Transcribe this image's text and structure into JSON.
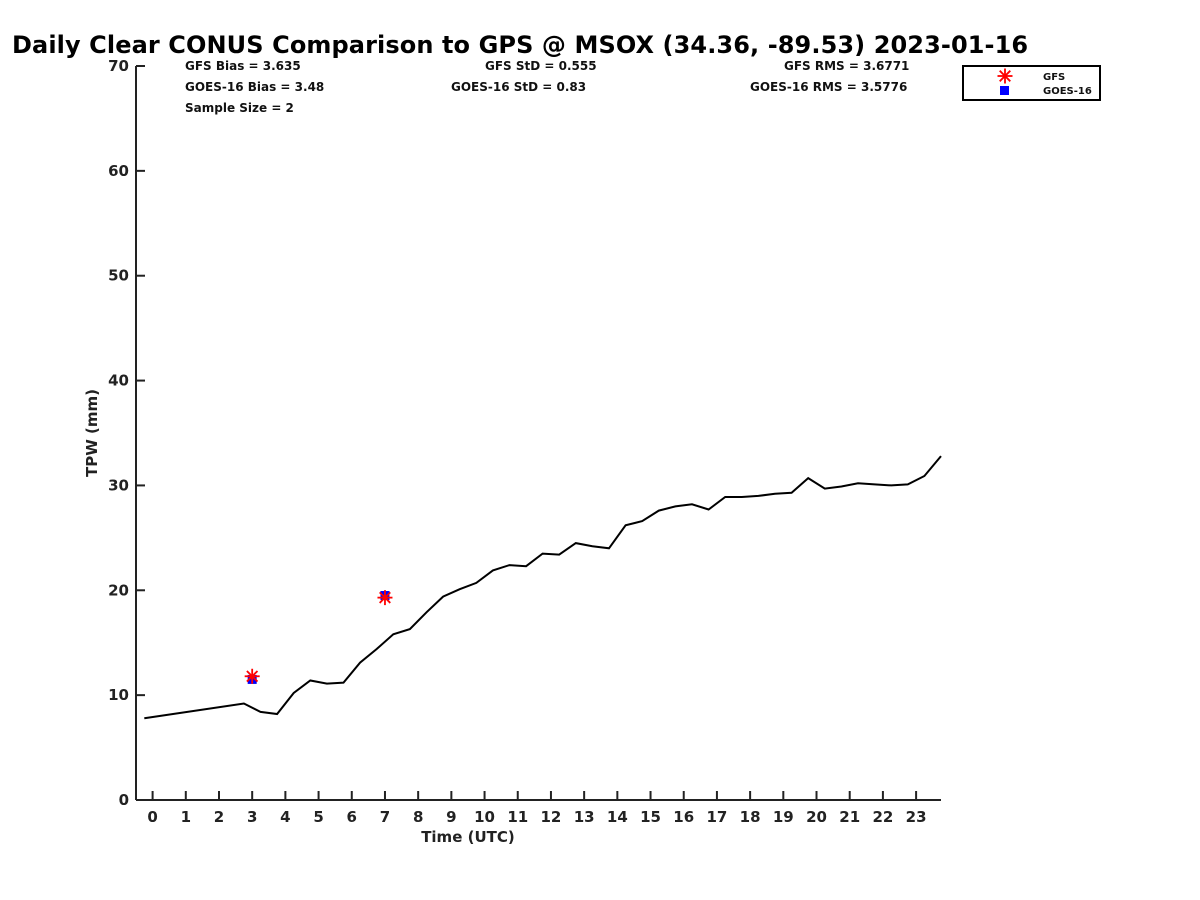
{
  "chart_data": {
    "type": "line",
    "title": "Daily Clear CONUS Comparison to GPS @ MSOX (34.36, -89.53) 2023-01-16",
    "xlabel": "Time (UTC)",
    "ylabel": "TPW (mm)",
    "xlim": [
      -0.5,
      23.75
    ],
    "ylim": [
      0,
      70
    ],
    "xticks": [
      0,
      1,
      2,
      3,
      4,
      5,
      6,
      7,
      8,
      9,
      10,
      11,
      12,
      13,
      14,
      15,
      16,
      17,
      18,
      19,
      20,
      21,
      22,
      23
    ],
    "yticks": [
      0,
      10,
      20,
      30,
      40,
      50,
      60,
      70
    ],
    "gps_line": {
      "x": [
        -0.25,
        2.75,
        3.25,
        3.75,
        4.25,
        4.75,
        5.25,
        5.75,
        6.25,
        6.75,
        7.25,
        7.75,
        8.25,
        8.75,
        9.25,
        9.75,
        10.25,
        10.75,
        11.25,
        11.75,
        12.25,
        12.75,
        13.25,
        13.75,
        14.25,
        14.75,
        15.25,
        15.75,
        16.25,
        16.75,
        17.25,
        17.75,
        18.25,
        18.75,
        19.25,
        19.75,
        20.25,
        20.75,
        21.25,
        21.75,
        22.25,
        22.75,
        23.25,
        23.75
      ],
      "y": [
        7.8,
        9.2,
        8.4,
        8.2,
        10.2,
        11.4,
        11.1,
        11.2,
        13.1,
        14.4,
        15.8,
        16.3,
        17.9,
        19.4,
        20.1,
        20.7,
        21.9,
        22.4,
        22.3,
        23.5,
        23.4,
        24.5,
        24.2,
        24.0,
        26.2,
        26.6,
        27.6,
        28.0,
        28.2,
        27.7,
        28.9,
        28.9,
        29.0,
        29.2,
        29.3,
        30.7,
        29.7,
        29.9,
        30.2,
        30.1,
        30.0,
        30.1,
        30.9,
        32.8
      ]
    },
    "series": [
      {
        "name": "GFS",
        "x": [
          3.0,
          7.0
        ],
        "y": [
          11.8,
          19.3
        ],
        "color": "#ff0000",
        "marker": "asterisk"
      },
      {
        "name": "GOES-16",
        "x": [
          3.0,
          7.0
        ],
        "y": [
          11.5,
          19.5
        ],
        "color": "#0000ff",
        "marker": "square"
      }
    ],
    "legend": {
      "placement": "top-right",
      "entries": [
        "GFS",
        "GOES-16"
      ]
    },
    "grid": false
  },
  "stats": {
    "gfs_bias": "GFS Bias = 3.635",
    "goes_bias": "GOES-16 Bias = 3.48",
    "sample_size": "Sample Size = 2",
    "gfs_std": "GFS StD = 0.555",
    "goes_std": "GOES-16 StD = 0.83",
    "gfs_rms": "GFS RMS = 3.6771",
    "goes_rms": "GOES-16 RMS = 3.5776"
  }
}
